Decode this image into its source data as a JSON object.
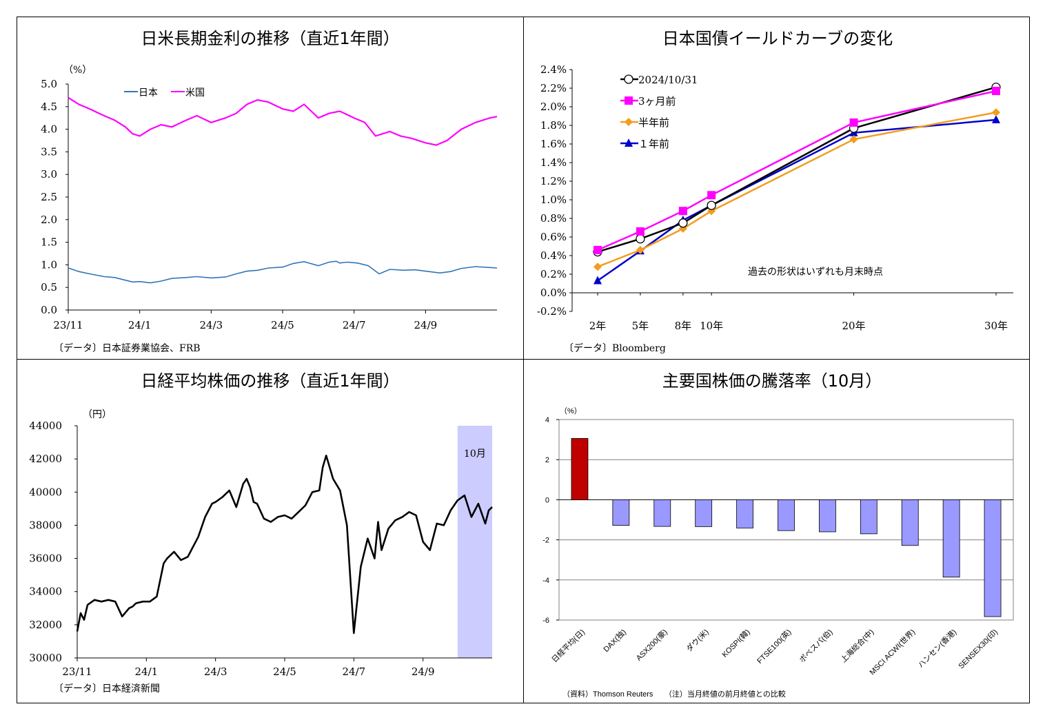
{
  "colors": {
    "japan": "#2e75b6",
    "us": "#ff00ff",
    "latest": "#000000",
    "m3": "#ff00ff",
    "m6": "#f39c1e",
    "y1": "#0000cc",
    "bar_pos": "#c00000",
    "bar_neg": "#9999ff",
    "highlight": "#ccccff",
    "nikkei_line": "#000000"
  },
  "panel1": {
    "title": "日米長期金利の推移（直近1年間）",
    "unit": "（%）",
    "source": "〔データ〕日本証券業協会、FRB",
    "chart_data": {
      "type": "line",
      "ylim": [
        0.0,
        5.0
      ],
      "yticks": [
        "5.0",
        "4.5",
        "4.0",
        "3.5",
        "3.0",
        "2.5",
        "2.0",
        "1.5",
        "1.0",
        "0.5",
        "0.0"
      ],
      "xticks": [
        "23/11",
        "24/1",
        "24/3",
        "24/5",
        "24/7",
        "24/9"
      ],
      "xlim_months": [
        0,
        12
      ],
      "series": [
        {
          "name": "日本",
          "color": "japan",
          "x": [
            0,
            0.3,
            0.6,
            1.0,
            1.3,
            1.6,
            1.8,
            2.0,
            2.3,
            2.6,
            2.9,
            3.3,
            3.6,
            4.0,
            4.4,
            4.7,
            5.0,
            5.3,
            5.6,
            6.0,
            6.3,
            6.6,
            7.0,
            7.3,
            7.5,
            7.6,
            7.8,
            8.1,
            8.4,
            8.7,
            9.0,
            9.4,
            9.7,
            10.0,
            10.4,
            10.7,
            11.0,
            11.4,
            11.8,
            12.0
          ],
          "values": [
            0.93,
            0.85,
            0.8,
            0.74,
            0.72,
            0.66,
            0.62,
            0.63,
            0.6,
            0.64,
            0.7,
            0.72,
            0.74,
            0.71,
            0.73,
            0.8,
            0.86,
            0.88,
            0.93,
            0.95,
            1.03,
            1.07,
            0.98,
            1.06,
            1.08,
            1.04,
            1.06,
            1.04,
            0.98,
            0.8,
            0.9,
            0.88,
            0.89,
            0.86,
            0.82,
            0.85,
            0.92,
            0.96,
            0.94,
            0.93
          ]
        },
        {
          "name": "米国",
          "color": "us",
          "x": [
            0,
            0.3,
            0.6,
            1.0,
            1.3,
            1.6,
            1.8,
            2.0,
            2.3,
            2.6,
            2.9,
            3.3,
            3.6,
            4.0,
            4.4,
            4.7,
            5.0,
            5.3,
            5.6,
            6.0,
            6.3,
            6.6,
            7.0,
            7.3,
            7.6,
            8.0,
            8.3,
            8.6,
            9.0,
            9.3,
            9.6,
            10.0,
            10.3,
            10.6,
            11.0,
            11.4,
            11.8,
            12.0
          ],
          "values": [
            4.7,
            4.55,
            4.45,
            4.3,
            4.2,
            4.05,
            3.9,
            3.85,
            4.0,
            4.1,
            4.05,
            4.2,
            4.3,
            4.15,
            4.25,
            4.35,
            4.55,
            4.65,
            4.6,
            4.45,
            4.4,
            4.55,
            4.25,
            4.35,
            4.4,
            4.25,
            4.15,
            3.85,
            3.95,
            3.85,
            3.8,
            3.7,
            3.65,
            3.75,
            4.0,
            4.15,
            4.25,
            4.28
          ]
        }
      ]
    }
  },
  "panel2": {
    "title": "日本国債イールドカーブの変化",
    "note": "過去の形状はいずれも月末時点",
    "source": "〔データ〕Bloomberg",
    "chart_data": {
      "type": "line",
      "ylim": [
        -0.2,
        2.4
      ],
      "yticks": [
        "2.4%",
        "2.2%",
        "2.0%",
        "1.8%",
        "1.6%",
        "1.4%",
        "1.2%",
        "1.0%",
        "0.8%",
        "0.6%",
        "0.4%",
        "0.2%",
        "0.0%",
        "-0.2%"
      ],
      "x": [
        2,
        5,
        8,
        10,
        20,
        30
      ],
      "xticks": [
        "2年",
        "5年",
        "8年",
        "10年",
        "20年",
        "30年"
      ],
      "series": [
        {
          "name": "2024/10/31",
          "color": "latest",
          "marker": "circle-open",
          "values": [
            0.44,
            0.58,
            0.75,
            0.94,
            1.77,
            2.21
          ]
        },
        {
          "name": "3ヶ月前",
          "color": "m3",
          "marker": "square",
          "values": [
            0.46,
            0.66,
            0.88,
            1.05,
            1.83,
            2.17
          ]
        },
        {
          "name": "半年前",
          "color": "m6",
          "marker": "diamond",
          "values": [
            0.28,
            0.46,
            0.69,
            0.88,
            1.65,
            1.94
          ]
        },
        {
          "name": "１年前",
          "color": "y1",
          "marker": "triangle",
          "values": [
            0.13,
            0.45,
            0.78,
            0.94,
            1.72,
            1.86
          ]
        }
      ]
    }
  },
  "panel3": {
    "title": "日経平均株価の推移（直近1年間）",
    "unit": "（円）",
    "highlight_label": "10月",
    "source": "〔データ〕日本経済新聞",
    "chart_data": {
      "type": "line",
      "ylim": [
        30000,
        44000
      ],
      "yticks": [
        "44000",
        "42000",
        "40000",
        "38000",
        "36000",
        "34000",
        "32000",
        "30000"
      ],
      "xticks": [
        "23/11",
        "24/1",
        "24/3",
        "24/5",
        "24/7",
        "24/9"
      ],
      "xlim_months": [
        0,
        12
      ],
      "highlight_months": [
        11,
        12
      ],
      "x": [
        0,
        0.1,
        0.2,
        0.3,
        0.5,
        0.7,
        0.9,
        1.1,
        1.3,
        1.5,
        1.6,
        1.7,
        1.9,
        2.1,
        2.3,
        2.5,
        2.6,
        2.8,
        3.0,
        3.2,
        3.3,
        3.5,
        3.7,
        3.9,
        4.0,
        4.2,
        4.4,
        4.6,
        4.8,
        4.9,
        5.0,
        5.1,
        5.2,
        5.4,
        5.6,
        5.8,
        6.0,
        6.2,
        6.4,
        6.6,
        6.8,
        7.0,
        7.1,
        7.2,
        7.4,
        7.6,
        7.8,
        8.0,
        8.2,
        8.4,
        8.6,
        8.7,
        8.8,
        9.0,
        9.2,
        9.4,
        9.6,
        9.8,
        10.0,
        10.2,
        10.4,
        10.6,
        10.8,
        11.0,
        11.2,
        11.4,
        11.6,
        11.8,
        11.9,
        12.0
      ],
      "values": [
        31600,
        32700,
        32300,
        33200,
        33500,
        33400,
        33500,
        33400,
        32500,
        33000,
        33100,
        33300,
        33400,
        33400,
        33700,
        35700,
        36000,
        36400,
        35900,
        36100,
        36500,
        37300,
        38500,
        39300,
        39400,
        39700,
        40100,
        39100,
        40500,
        40800,
        40300,
        39400,
        39300,
        38400,
        38200,
        38500,
        38600,
        38400,
        38800,
        39200,
        40000,
        40100,
        41500,
        42200,
        40800,
        40100,
        38000,
        31500,
        35500,
        37200,
        36000,
        38200,
        36500,
        37800,
        38300,
        38500,
        38800,
        38600,
        37000,
        36500,
        38100,
        38000,
        38900,
        39500,
        39800,
        38500,
        39300,
        38100,
        38900,
        39100
      ]
    }
  },
  "panel4": {
    "title": "主要国株価の騰落率（10月）",
    "unit": "（%）",
    "source": "（資料）Thomson Reuters　　（注）当月終値の前月終値との比較",
    "chart_data": {
      "type": "bar",
      "ylim": [
        -6,
        4
      ],
      "yticks": [
        "4",
        "2",
        "0",
        "-2",
        "-4",
        "-6"
      ],
      "categories": [
        "日経平均(日)",
        "DAX(独)",
        "ASX200(豪)",
        "ダウ(米)",
        "KOSPI(韓)",
        "FTSE100(英)",
        "ボベスパ(伯)",
        "上海総合(中)",
        "MSCI ACWI(世界)",
        "ハンセン(香港)",
        "SENSEX30(印)"
      ],
      "values": [
        3.06,
        -1.28,
        -1.33,
        -1.34,
        -1.41,
        -1.54,
        -1.6,
        -1.7,
        -2.28,
        -3.86,
        -5.83
      ]
    }
  }
}
